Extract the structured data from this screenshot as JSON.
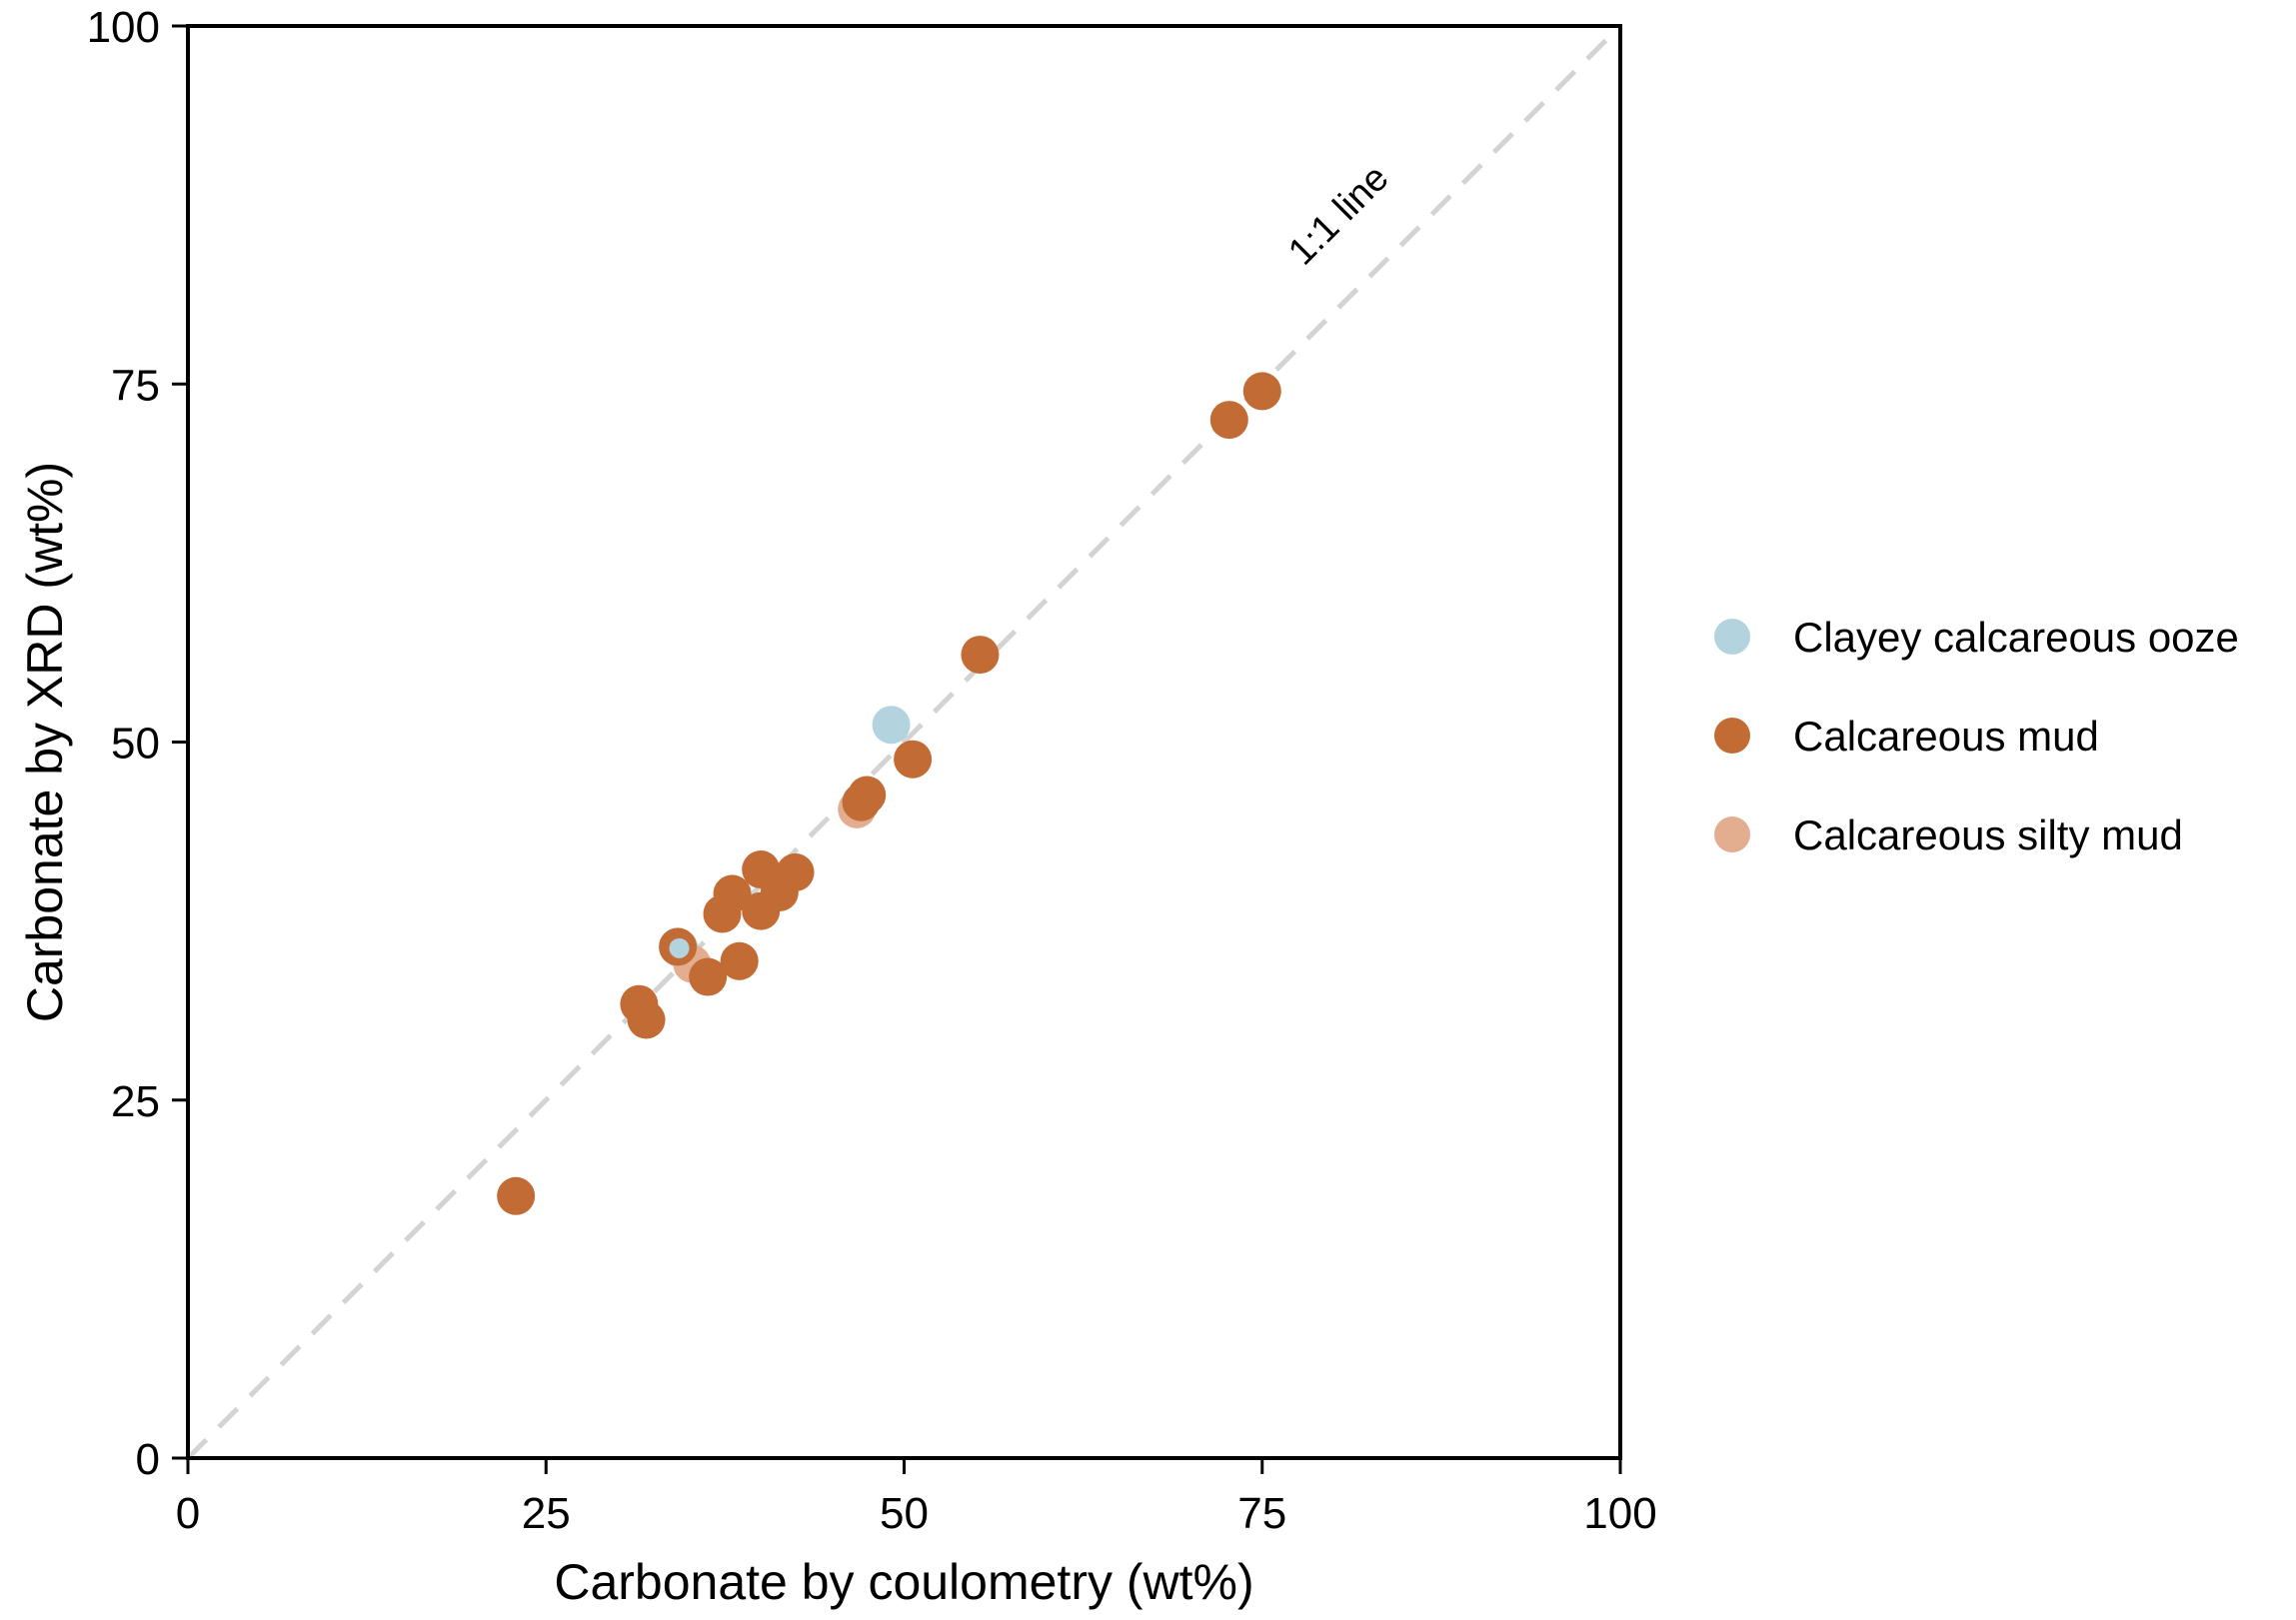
{
  "chart_data": {
    "type": "scatter",
    "title": "",
    "xlabel": "Carbonate by coulometry (wt%)",
    "ylabel": "Carbonate by XRD (wt%)",
    "xlim": [
      0,
      100
    ],
    "ylim": [
      0,
      100
    ],
    "x_ticks": [
      0,
      25,
      50,
      75,
      100
    ],
    "y_ticks": [
      0,
      25,
      50,
      75,
      100
    ],
    "x_tick_labels": [
      "0",
      "25",
      "50",
      "75",
      "100"
    ],
    "y_tick_labels": [
      "0",
      "25",
      "50",
      "75",
      "100"
    ],
    "grid": false,
    "legend_position": "right",
    "reference_line": {
      "label": "1:1 line",
      "style": "dashed",
      "color": "#d3d3d3",
      "from": [
        0,
        0
      ],
      "to": [
        100,
        100
      ]
    },
    "series": [
      {
        "name": "Clayey calcareous ooze",
        "color": "#b3d3df",
        "points": [
          {
            "x": 49.1,
            "y": 51.2
          },
          {
            "x": 75.0,
            "y": 74.5
          },
          {
            "x": 34.3,
            "y": 35.6
          }
        ]
      },
      {
        "name": "Calcareous silty mud",
        "color": "#e2ae8f",
        "points": [
          {
            "x": 46.7,
            "y": 45.3
          },
          {
            "x": 35.2,
            "y": 34.5
          },
          {
            "x": 38.5,
            "y": 34.7
          }
        ]
      },
      {
        "name": "Calcareous mud",
        "color": "#c26b35",
        "points": [
          {
            "x": 22.9,
            "y": 18.3
          },
          {
            "x": 31.5,
            "y": 31.7
          },
          {
            "x": 32.0,
            "y": 30.6
          },
          {
            "x": 36.3,
            "y": 33.6
          },
          {
            "x": 34.2,
            "y": 35.7
          },
          {
            "x": 38.5,
            "y": 34.7
          },
          {
            "x": 37.3,
            "y": 38.0
          },
          {
            "x": 38.0,
            "y": 39.4
          },
          {
            "x": 40.0,
            "y": 38.2
          },
          {
            "x": 41.3,
            "y": 39.5
          },
          {
            "x": 40.0,
            "y": 41.1
          },
          {
            "x": 42.4,
            "y": 40.9
          },
          {
            "x": 47.0,
            "y": 45.8
          },
          {
            "x": 47.4,
            "y": 46.3
          },
          {
            "x": 50.6,
            "y": 48.8
          },
          {
            "x": 55.3,
            "y": 56.1
          },
          {
            "x": 72.7,
            "y": 72.5
          },
          {
            "x": 75.0,
            "y": 74.5
          }
        ]
      }
    ],
    "legend_order": [
      "Clayey calcareous ooze",
      "Calcareous mud",
      "Calcareous silty mud"
    ]
  }
}
